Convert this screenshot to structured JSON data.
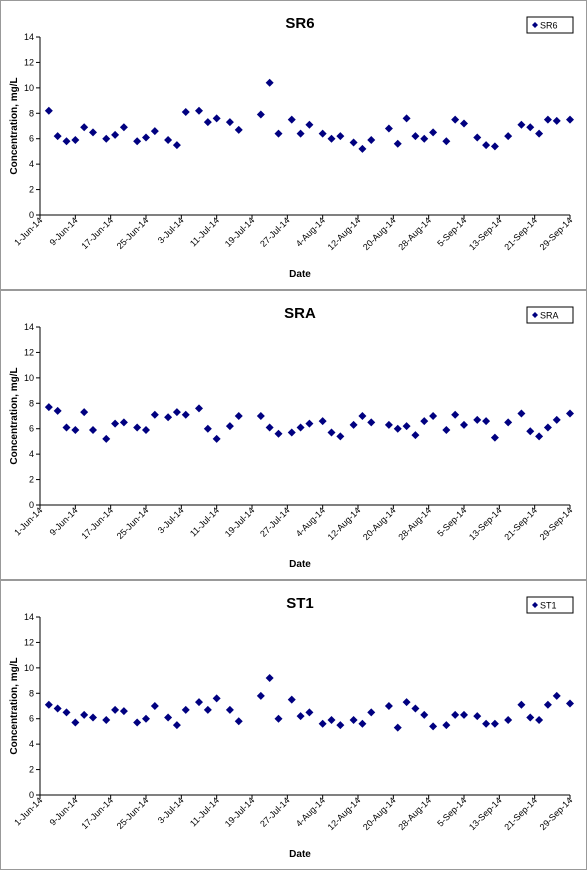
{
  "chart_data": [
    {
      "type": "scatter",
      "title": "SR6",
      "xlabel": "Date",
      "ylabel": "Concentration, mg/L",
      "x": [
        "3-Jun-14",
        "5-Jun-14",
        "7-Jun-14",
        "9-Jun-14",
        "11-Jun-14",
        "13-Jun-14",
        "16-Jun-14",
        "18-Jun-14",
        "20-Jun-14",
        "23-Jun-14",
        "25-Jun-14",
        "27-Jun-14",
        "30-Jun-14",
        "2-Jul-14",
        "4-Jul-14",
        "7-Jul-14",
        "9-Jul-14",
        "11-Jul-14",
        "14-Jul-14",
        "16-Jul-14",
        "21-Jul-14",
        "23-Jul-14",
        "25-Jul-14",
        "28-Jul-14",
        "30-Jul-14",
        "1-Aug-14",
        "4-Aug-14",
        "6-Aug-14",
        "8-Aug-14",
        "11-Aug-14",
        "13-Aug-14",
        "15-Aug-14",
        "19-Aug-14",
        "21-Aug-14",
        "23-Aug-14",
        "25-Aug-14",
        "27-Aug-14",
        "29-Aug-14",
        "1-Sep-14",
        "3-Sep-14",
        "5-Sep-14",
        "8-Sep-14",
        "10-Sep-14",
        "12-Sep-14",
        "15-Sep-14",
        "18-Sep-14",
        "20-Sep-14",
        "22-Sep-14",
        "24-Sep-14",
        "26-Sep-14",
        "29-Sep-14"
      ],
      "series": [
        {
          "name": "SR6",
          "color": "#000080",
          "values": [
            8.2,
            6.2,
            5.8,
            5.9,
            6.9,
            6.5,
            6.0,
            6.3,
            6.9,
            5.8,
            6.1,
            6.6,
            5.9,
            5.5,
            8.1,
            8.2,
            7.3,
            7.6,
            7.3,
            6.7,
            7.9,
            10.4,
            6.4,
            7.5,
            6.4,
            7.1,
            6.4,
            6.0,
            6.2,
            5.7,
            5.2,
            5.9,
            6.8,
            5.6,
            7.6,
            6.2,
            6.0,
            6.5,
            5.8,
            7.5,
            7.2,
            6.1,
            5.5,
            5.4,
            6.2,
            7.1,
            6.9,
            6.4,
            7.5,
            7.4,
            7.5
          ]
        }
      ],
      "xlim": [
        "1-Jun-14",
        "29-Sep-14"
      ],
      "xticks": [
        "1-Jun-14",
        "9-Jun-14",
        "17-Jun-14",
        "25-Jun-14",
        "3-Jul-14",
        "11-Jul-14",
        "19-Jul-14",
        "27-Jul-14",
        "4-Aug-14",
        "12-Aug-14",
        "20-Aug-14",
        "28-Aug-14",
        "5-Sep-14",
        "13-Sep-14",
        "21-Sep-14",
        "29-Sep-14"
      ],
      "ylim": [
        0,
        14
      ],
      "yticks": [
        0,
        2,
        4,
        6,
        8,
        10,
        12,
        14
      ],
      "legend": "top-right"
    },
    {
      "type": "scatter",
      "title": "SRA",
      "xlabel": "Date",
      "ylabel": "Concentration, mg/L",
      "x": [
        "3-Jun-14",
        "5-Jun-14",
        "7-Jun-14",
        "9-Jun-14",
        "11-Jun-14",
        "13-Jun-14",
        "16-Jun-14",
        "18-Jun-14",
        "20-Jun-14",
        "23-Jun-14",
        "25-Jun-14",
        "27-Jun-14",
        "30-Jun-14",
        "2-Jul-14",
        "4-Jul-14",
        "7-Jul-14",
        "9-Jul-14",
        "11-Jul-14",
        "14-Jul-14",
        "16-Jul-14",
        "21-Jul-14",
        "23-Jul-14",
        "25-Jul-14",
        "28-Jul-14",
        "30-Jul-14",
        "1-Aug-14",
        "4-Aug-14",
        "6-Aug-14",
        "8-Aug-14",
        "11-Aug-14",
        "13-Aug-14",
        "15-Aug-14",
        "19-Aug-14",
        "21-Aug-14",
        "23-Aug-14",
        "25-Aug-14",
        "27-Aug-14",
        "29-Aug-14",
        "1-Sep-14",
        "3-Sep-14",
        "5-Sep-14",
        "8-Sep-14",
        "10-Sep-14",
        "12-Sep-14",
        "15-Sep-14",
        "18-Sep-14",
        "20-Sep-14",
        "22-Sep-14",
        "24-Sep-14",
        "26-Sep-14",
        "29-Sep-14"
      ],
      "series": [
        {
          "name": "SRA",
          "color": "#000080",
          "values": [
            7.7,
            7.4,
            6.1,
            5.9,
            7.3,
            5.9,
            5.2,
            6.4,
            6.5,
            6.1,
            5.9,
            7.1,
            6.9,
            7.3,
            7.1,
            7.6,
            6.0,
            5.2,
            6.2,
            7.0,
            7.0,
            6.1,
            5.6,
            5.7,
            6.1,
            6.4,
            6.6,
            5.7,
            5.4,
            6.3,
            7.0,
            6.5,
            6.3,
            6.0,
            6.2,
            5.5,
            6.6,
            7.0,
            5.9,
            7.1,
            6.3,
            6.7,
            6.6,
            5.3,
            6.5,
            7.2,
            5.8,
            5.4,
            6.1,
            6.7,
            7.2
          ]
        }
      ],
      "xlim": [
        "1-Jun-14",
        "29-Sep-14"
      ],
      "xticks": [
        "1-Jun-14",
        "9-Jun-14",
        "17-Jun-14",
        "25-Jun-14",
        "3-Jul-14",
        "11-Jul-14",
        "19-Jul-14",
        "27-Jul-14",
        "4-Aug-14",
        "12-Aug-14",
        "20-Aug-14",
        "28-Aug-14",
        "5-Sep-14",
        "13-Sep-14",
        "21-Sep-14",
        "29-Sep-14"
      ],
      "ylim": [
        0,
        14
      ],
      "yticks": [
        0,
        2,
        4,
        6,
        8,
        10,
        12,
        14
      ],
      "legend": "top-right"
    },
    {
      "type": "scatter",
      "title": "ST1",
      "xlabel": "Date",
      "ylabel": "Concentration, mg/L",
      "x": [
        "3-Jun-14",
        "5-Jun-14",
        "7-Jun-14",
        "9-Jun-14",
        "11-Jun-14",
        "13-Jun-14",
        "16-Jun-14",
        "18-Jun-14",
        "20-Jun-14",
        "23-Jun-14",
        "25-Jun-14",
        "27-Jun-14",
        "30-Jun-14",
        "2-Jul-14",
        "4-Jul-14",
        "7-Jul-14",
        "9-Jul-14",
        "11-Jul-14",
        "14-Jul-14",
        "16-Jul-14",
        "21-Jul-14",
        "23-Jul-14",
        "25-Jul-14",
        "28-Jul-14",
        "30-Jul-14",
        "1-Aug-14",
        "4-Aug-14",
        "6-Aug-14",
        "8-Aug-14",
        "11-Aug-14",
        "13-Aug-14",
        "15-Aug-14",
        "19-Aug-14",
        "21-Aug-14",
        "23-Aug-14",
        "25-Aug-14",
        "27-Aug-14",
        "29-Aug-14",
        "1-Sep-14",
        "3-Sep-14",
        "5-Sep-14",
        "8-Sep-14",
        "10-Sep-14",
        "12-Sep-14",
        "15-Sep-14",
        "18-Sep-14",
        "20-Sep-14",
        "22-Sep-14",
        "24-Sep-14",
        "26-Sep-14",
        "29-Sep-14"
      ],
      "series": [
        {
          "name": "ST1",
          "color": "#000080",
          "values": [
            7.1,
            6.8,
            6.5,
            5.7,
            6.3,
            6.1,
            5.9,
            6.7,
            6.6,
            5.7,
            6.0,
            7.0,
            6.1,
            5.5,
            6.7,
            7.3,
            6.7,
            7.6,
            6.7,
            5.8,
            7.8,
            9.2,
            6.0,
            7.5,
            6.2,
            6.5,
            5.6,
            5.9,
            5.5,
            5.9,
            5.6,
            6.5,
            7.0,
            5.3,
            7.3,
            6.8,
            6.3,
            5.4,
            5.5,
            6.3,
            6.3,
            6.2,
            5.6,
            5.6,
            5.9,
            7.1,
            6.1,
            5.9,
            7.1,
            7.8,
            7.2
          ]
        }
      ],
      "xlim": [
        "1-Jun-14",
        "29-Sep-14"
      ],
      "xticks": [
        "1-Jun-14",
        "9-Jun-14",
        "17-Jun-14",
        "25-Jun-14",
        "3-Jul-14",
        "11-Jul-14",
        "19-Jul-14",
        "27-Jul-14",
        "4-Aug-14",
        "12-Aug-14",
        "20-Aug-14",
        "28-Aug-14",
        "5-Sep-14",
        "13-Sep-14",
        "21-Sep-14",
        "29-Sep-14"
      ],
      "ylim": [
        0,
        14
      ],
      "yticks": [
        0,
        2,
        4,
        6,
        8,
        10,
        12,
        14
      ],
      "legend": "top-right"
    }
  ]
}
